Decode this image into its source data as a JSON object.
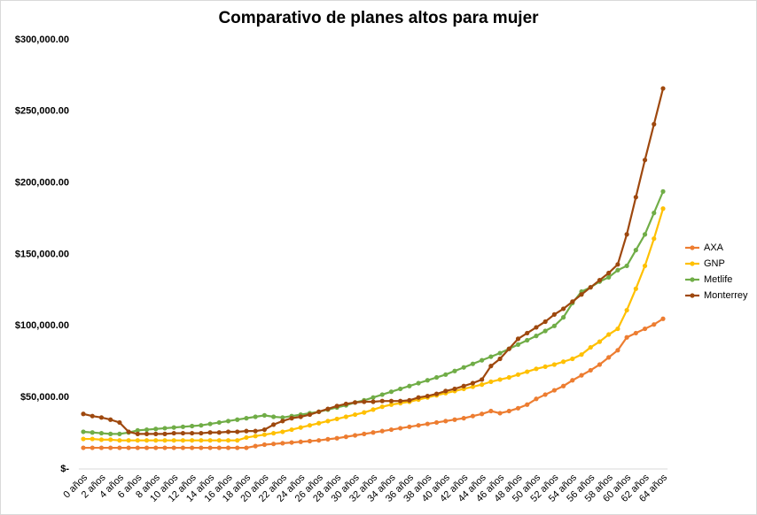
{
  "chart_data": {
    "type": "line",
    "title": "Comparativo de planes altos para mujer",
    "categories": [
      "0 años",
      null,
      "2 años",
      null,
      "4 años",
      null,
      "6 años",
      null,
      "8 años",
      null,
      "10 años",
      null,
      "12 años",
      null,
      "14 años",
      null,
      "16 años",
      null,
      "18 años",
      null,
      "20 años",
      null,
      "22 años",
      null,
      "24 años",
      null,
      "26 años",
      null,
      "28 años",
      null,
      "30 años",
      null,
      "32 años",
      null,
      "34 años",
      null,
      "36 años",
      null,
      "38 años",
      null,
      "40 años",
      null,
      "42 años",
      null,
      "44 años",
      null,
      "46 años",
      null,
      "48 años",
      null,
      "50 años",
      null,
      "52 años",
      null,
      "54 años",
      null,
      "56 años",
      null,
      "58 años",
      null,
      "60 años",
      null,
      "62 años",
      null,
      "64 años"
    ],
    "series": [
      {
        "name": "AXA",
        "color": "#ed7d31",
        "values": [
          14800,
          14800,
          14800,
          14800,
          14800,
          14800,
          14800,
          14800,
          14800,
          14800,
          14800,
          14800,
          14800,
          14800,
          14800,
          14800,
          14800,
          14800,
          14800,
          16000,
          17000,
          17500,
          18000,
          18500,
          19000,
          19500,
          20000,
          20800,
          21500,
          22500,
          23500,
          24500,
          25500,
          26500,
          27500,
          28500,
          29500,
          30500,
          31500,
          32500,
          33500,
          34500,
          35500,
          37000,
          38500,
          40500,
          39000,
          40500,
          42500,
          45000,
          49000,
          52000,
          55000,
          58000,
          62000,
          65500,
          69000,
          73000,
          78000,
          83000,
          92000,
          95000,
          98000,
          101000,
          105000
        ]
      },
      {
        "name": "GNP",
        "color": "#ffc000",
        "values": [
          21000,
          21000,
          20500,
          20500,
          20000,
          20000,
          20000,
          20000,
          20000,
          20000,
          20000,
          20000,
          20000,
          20000,
          20000,
          20000,
          20000,
          20000,
          22000,
          23000,
          24000,
          25000,
          26000,
          27500,
          29000,
          30500,
          32000,
          33500,
          35000,
          36500,
          38000,
          39500,
          41500,
          43500,
          45000,
          46000,
          47000,
          48500,
          50000,
          51500,
          53000,
          54500,
          56000,
          57500,
          59000,
          61000,
          62500,
          64000,
          66000,
          68000,
          70000,
          71500,
          73000,
          75000,
          77000,
          80000,
          85000,
          89000,
          94000,
          98000,
          111000,
          126000,
          142000,
          161000,
          182000
        ]
      },
      {
        "name": "Metlife",
        "color": "#70ad47",
        "values": [
          26000,
          25500,
          25000,
          24500,
          24500,
          25500,
          27000,
          27500,
          28000,
          28500,
          29000,
          29500,
          30000,
          30500,
          31500,
          32500,
          33500,
          34500,
          35500,
          36500,
          37500,
          36500,
          36000,
          37000,
          38000,
          39000,
          40000,
          41500,
          43000,
          44500,
          46500,
          48000,
          50000,
          52000,
          54000,
          56000,
          58000,
          60000,
          62000,
          64000,
          66000,
          68500,
          71000,
          73500,
          76000,
          78500,
          81000,
          84000,
          87000,
          90000,
          93000,
          96500,
          100000,
          106000,
          116000,
          124000,
          127000,
          131000,
          134000,
          139000,
          142000,
          153000,
          164000,
          179000,
          194000
        ]
      },
      {
        "name": "Monterrey",
        "color": "#9e480e",
        "values": [
          38500,
          37000,
          36000,
          34500,
          32500,
          26000,
          24500,
          24500,
          24500,
          24500,
          25000,
          25000,
          25000,
          25000,
          25500,
          25500,
          26000,
          26000,
          26500,
          26500,
          27500,
          31000,
          33500,
          35500,
          36500,
          38000,
          40000,
          42000,
          44000,
          45500,
          46500,
          47000,
          47000,
          47500,
          47500,
          47500,
          48000,
          50000,
          51000,
          52500,
          54500,
          56000,
          58000,
          60000,
          62500,
          72000,
          77000,
          84000,
          91000,
          95000,
          99000,
          103000,
          108000,
          112000,
          117000,
          122000,
          127000,
          132000,
          137000,
          143000,
          164000,
          190000,
          216000,
          241000,
          266000
        ]
      }
    ],
    "ylim": [
      0,
      300000
    ],
    "yticks": [
      {
        "value": 0,
        "label": "$-"
      },
      {
        "value": 50000,
        "label": "$50,000.00"
      },
      {
        "value": 100000,
        "label": "$100,000.00"
      },
      {
        "value": 150000,
        "label": "$150,000.00"
      },
      {
        "value": 200000,
        "label": "$200,000.00"
      },
      {
        "value": 250000,
        "label": "$250,000.00"
      },
      {
        "value": 300000,
        "label": "$300,000.00"
      }
    ],
    "legend": "right"
  }
}
